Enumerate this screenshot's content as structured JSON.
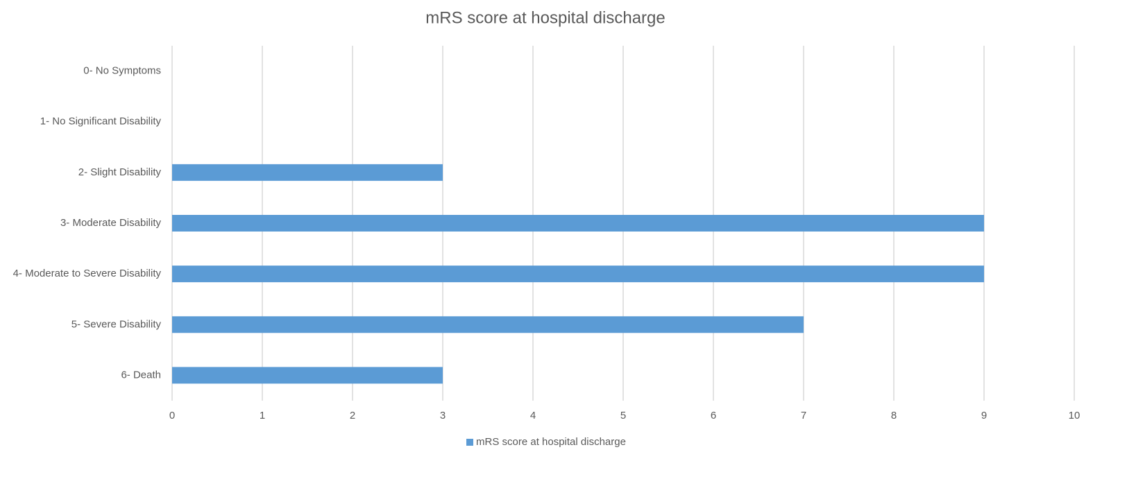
{
  "chart_data": {
    "type": "bar",
    "orientation": "horizontal",
    "title": "mRS score at hospital discharge",
    "categories": [
      "0- No Symptoms",
      "1- No Significant Disability",
      "2- Slight Disability",
      "3- Moderate Disability",
      "4- Moderate to Severe Disability",
      "5- Severe Disability",
      "6- Death"
    ],
    "series": [
      {
        "name": "mRS score at hospital discharge",
        "color": "#5b9bd5",
        "values": [
          0,
          0,
          3,
          9,
          9,
          7,
          3
        ]
      }
    ],
    "xlim": [
      0,
      10
    ],
    "xticks": [
      0,
      1,
      2,
      3,
      4,
      5,
      6,
      7,
      8,
      9,
      10
    ],
    "grid": true,
    "legend": "bottom"
  }
}
